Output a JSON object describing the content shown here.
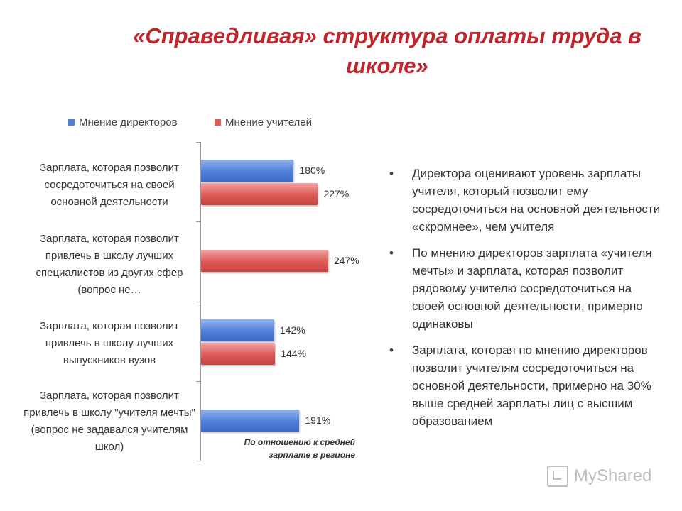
{
  "title": "«Справедливая» структура оплаты труда в школе»",
  "chart_data": {
    "type": "bar",
    "orientation": "horizontal",
    "title": "",
    "xlabel": "",
    "ylabel": "",
    "categories": [
      "Зарплата, которая позволит сосредоточиться на своей основной деятельности",
      "Зарплата, которая позволит привлечь в школу лучших специалистов из других сфер (вопрос не…",
      "Зарплата, которая позволит привлечь в школу лучших выпускников вузов",
      "Зарплата, которая позволит привлечь в школу \"учителя мечты\" (вопрос не задавался учителям школ)"
    ],
    "series": [
      {
        "name": "Мнение директоров",
        "color": "#4f81d9",
        "values": [
          180,
          null,
          142,
          191
        ],
        "labels": [
          "180%",
          "",
          "142%",
          "191%"
        ]
      },
      {
        "name": "Мнение учителей",
        "color": "#dd5956",
        "values": [
          227,
          247,
          144,
          null
        ],
        "labels": [
          "227%",
          "247%",
          "144%",
          ""
        ]
      }
    ],
    "unit": "%",
    "xlim": [
      0,
      260
    ],
    "legend_position": "top",
    "gridlines": false,
    "note": "По отношению к средней зарплате в регионе"
  },
  "bullets": [
    "Директора оценивают уровень зарплаты учителя, который позволит ему сосредоточиться на основной деятельности «скромнее», чем учителя",
    "По мнению директоров зарплата «учителя мечты» и зарплата, которая позволит рядовому учителю сосредоточиться на своей основной деятельности, примерно одинаковы",
    "Зарплата, которая по мнению директоров позволит учителям сосредоточиться на основной деятельности, примерно на 30% выше средней зарплаты лиц с высшим образованием"
  ],
  "bullet_symbol": "•",
  "watermark": "MyShared"
}
